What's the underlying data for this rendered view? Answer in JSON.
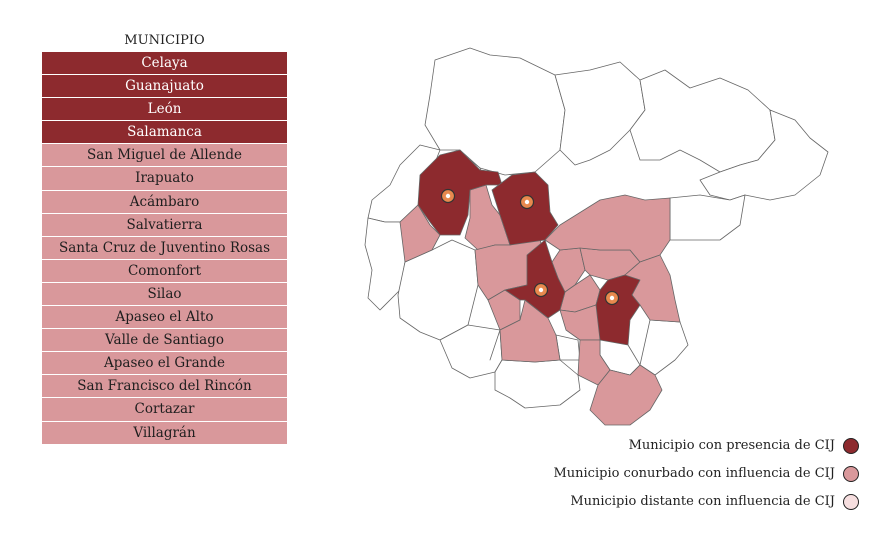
{
  "table": {
    "header": "MUNICIPIO",
    "rows": [
      {
        "name": "Celaya",
        "category": "presence"
      },
      {
        "name": "Guanajuato",
        "category": "presence"
      },
      {
        "name": "León",
        "category": "presence"
      },
      {
        "name": "Salamanca",
        "category": "presence"
      },
      {
        "name": "San Miguel de Allende",
        "category": "conurbado"
      },
      {
        "name": "Irapuato",
        "category": "conurbado"
      },
      {
        "name": "Acámbaro",
        "category": "conurbado"
      },
      {
        "name": "Salvatierra",
        "category": "conurbado"
      },
      {
        "name": "Santa Cruz de Juventino Rosas",
        "category": "conurbado"
      },
      {
        "name": "Comonfort",
        "category": "conurbado"
      },
      {
        "name": "Silao",
        "category": "conurbado"
      },
      {
        "name": "Apaseo el Alto",
        "category": "conurbado"
      },
      {
        "name": "Valle de Santiago",
        "category": "conurbado"
      },
      {
        "name": "Apaseo el Grande",
        "category": "conurbado"
      },
      {
        "name": "San Francisco del Rincón",
        "category": "conurbado"
      },
      {
        "name": "Cortazar",
        "category": "conurbado"
      },
      {
        "name": "Villagrán",
        "category": "conurbado"
      }
    ]
  },
  "legend": {
    "presence": "Municipio con presencia de CIJ",
    "conurbado": "Municipio conurbado con influencia de CIJ",
    "distante": "Municipio distante con influencia de CIJ"
  },
  "colors": {
    "presence": "#8d2a2e",
    "conurbado": "#d9989b",
    "distante": "#f6dedf",
    "none": "#ffffff",
    "marker": "#e8894e"
  }
}
